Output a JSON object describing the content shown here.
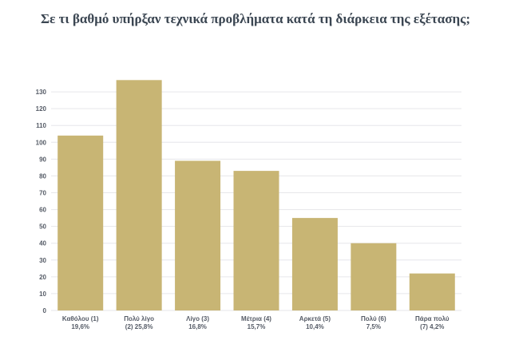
{
  "chart_data": {
    "type": "bar",
    "title": "Σε τι βαθμό υπήρξαν τεχνικά προβλήματα κατά τη διάρκεια της εξέτασης;",
    "xlabel": "",
    "ylabel": "",
    "categories": [
      [
        "Καθόλου (1)",
        "19,6%"
      ],
      [
        "Πολύ λίγο",
        "(2) 25,8%"
      ],
      [
        "Λίγο (3)",
        "16,8%"
      ],
      [
        "Μέτρια (4)",
        "15,7%"
      ],
      [
        "Αρκετά (5)",
        "10,4%"
      ],
      [
        "Πολύ (6)",
        "7,5%"
      ],
      [
        "Πάρα πολύ",
        "(7) 4,2%"
      ]
    ],
    "values": [
      104,
      137,
      89,
      83,
      55,
      40,
      22
    ],
    "yticks": [
      0,
      10,
      20,
      30,
      40,
      50,
      60,
      70,
      80,
      90,
      100,
      110,
      120,
      130
    ],
    "ylim": [
      0,
      140
    ],
    "grid": true,
    "legend": "none",
    "bar_color": "#c8b574",
    "grid_color": "#e6e6ea"
  }
}
